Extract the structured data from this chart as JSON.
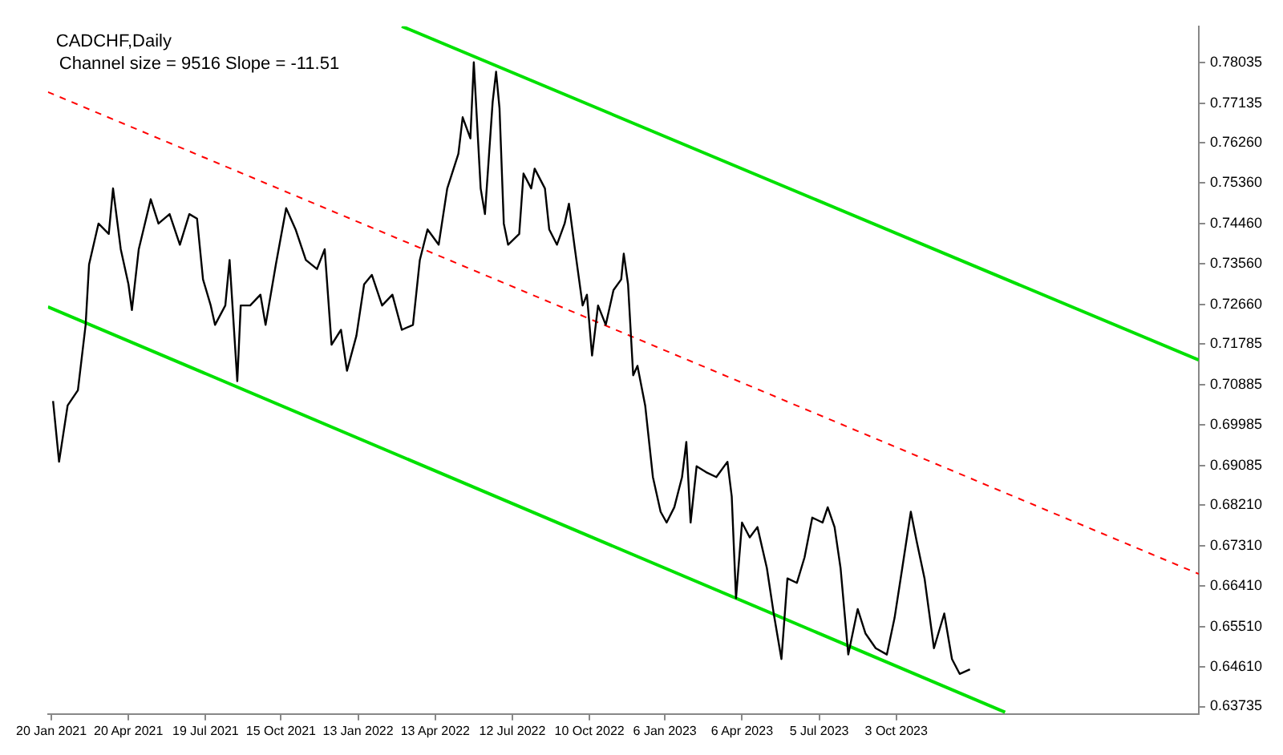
{
  "chart_data": {
    "type": "line",
    "title": "CADCHF,Daily",
    "annotations": [
      "Channel size = 9516 Slope = -11.51"
    ],
    "xlim": [
      "2021-01-16",
      "2024-09-20"
    ],
    "xticks": [
      {
        "value": "2021-01-20",
        "label": "20 Jan 2021"
      },
      {
        "value": "2021-04-20",
        "label": "20 Apr 2021"
      },
      {
        "value": "2021-07-19",
        "label": "19 Jul 2021"
      },
      {
        "value": "2021-10-15",
        "label": "15 Oct 2021"
      },
      {
        "value": "2022-01-13",
        "label": "13 Jan 2022"
      },
      {
        "value": "2022-04-13",
        "label": "13 Apr 2022"
      },
      {
        "value": "2022-07-12",
        "label": "12 Jul 2022"
      },
      {
        "value": "2022-10-10",
        "label": "10 Oct 2022"
      },
      {
        "value": "2023-01-06",
        "label": "6 Jan 2023"
      },
      {
        "value": "2023-04-06",
        "label": "6 Apr 2023"
      },
      {
        "value": "2023-07-05",
        "label": "5 Jul 2023"
      },
      {
        "value": "2023-10-03",
        "label": "3 Oct 2023"
      }
    ],
    "ylim": [
      0.6357,
      0.7884
    ],
    "yticks": [
      {
        "value": 0.63735,
        "label": "0.63735"
      },
      {
        "value": 0.6461,
        "label": "0.64610"
      },
      {
        "value": 0.6551,
        "label": "0.65510"
      },
      {
        "value": 0.6641,
        "label": "0.66410"
      },
      {
        "value": 0.6731,
        "label": "0.67310"
      },
      {
        "value": 0.6821,
        "label": "0.68210"
      },
      {
        "value": 0.69085,
        "label": "0.69085"
      },
      {
        "value": 0.69985,
        "label": "0.69985"
      },
      {
        "value": 0.70885,
        "label": "0.70885"
      },
      {
        "value": 0.71785,
        "label": "0.71785"
      },
      {
        "value": 0.7266,
        "label": "0.72660"
      },
      {
        "value": 0.7356,
        "label": "0.73560"
      },
      {
        "value": 0.7446,
        "label": "0.74460"
      },
      {
        "value": 0.7536,
        "label": "0.75360"
      },
      {
        "value": 0.7626,
        "label": "0.76260"
      },
      {
        "value": 0.77135,
        "label": "0.77135"
      },
      {
        "value": 0.78035,
        "label": "0.78035"
      }
    ],
    "grid": false,
    "legend": false,
    "marker": "none",
    "series": [
      {
        "color": "#000000",
        "line_style": "solid",
        "x": [
          "2021-01-22",
          "2021-01-29",
          "2021-02-08",
          "2021-02-20",
          "2021-03-01",
          "2021-03-05",
          "2021-03-16",
          "2021-03-28",
          "2021-04-02",
          "2021-04-11",
          "2021-04-20",
          "2021-04-24",
          "2021-05-02",
          "2021-05-16",
          "2021-05-25",
          "2021-06-07",
          "2021-06-19",
          "2021-06-30",
          "2021-07-09",
          "2021-07-16",
          "2021-07-25",
          "2021-07-30",
          "2021-08-11",
          "2021-08-16",
          "2021-08-25",
          "2021-08-29",
          "2021-09-09",
          "2021-09-21",
          "2021-09-27",
          "2021-10-09",
          "2021-10-21",
          "2021-11-01",
          "2021-11-13",
          "2021-11-26",
          "2021-12-05",
          "2021-12-13",
          "2021-12-24",
          "2021-12-31",
          "2022-01-11",
          "2022-01-20",
          "2022-01-29",
          "2022-02-10",
          "2022-02-22",
          "2022-03-05",
          "2022-03-18",
          "2022-03-26",
          "2022-04-04",
          "2022-04-17",
          "2022-04-27",
          "2022-05-10",
          "2022-05-15",
          "2022-05-24",
          "2022-05-28",
          "2022-06-05",
          "2022-06-10",
          "2022-06-19",
          "2022-06-23",
          "2022-06-27",
          "2022-07-02",
          "2022-07-07",
          "2022-07-20",
          "2022-07-25",
          "2022-08-03",
          "2022-08-07",
          "2022-08-19",
          "2022-08-24",
          "2022-09-02",
          "2022-09-11",
          "2022-09-16",
          "2022-09-23",
          "2022-10-02",
          "2022-10-07",
          "2022-10-13",
          "2022-10-20",
          "2022-10-29",
          "2022-11-07",
          "2022-11-16",
          "2022-11-19",
          "2022-11-24",
          "2022-11-30",
          "2022-12-05",
          "2022-12-14",
          "2022-12-23",
          "2023-01-01",
          "2023-01-08",
          "2023-01-17",
          "2023-01-26",
          "2023-01-31",
          "2023-02-05",
          "2023-02-12",
          "2023-02-23",
          "2023-03-07",
          "2023-03-20",
          "2023-03-25",
          "2023-03-30",
          "2023-04-06",
          "2023-04-15",
          "2023-04-24",
          "2023-05-05",
          "2023-05-13",
          "2023-05-22",
          "2023-05-29",
          "2023-06-09",
          "2023-06-18",
          "2023-06-27",
          "2023-07-09",
          "2023-07-15",
          "2023-07-23",
          "2023-07-30",
          "2023-08-08",
          "2023-08-19",
          "2023-08-28",
          "2023-09-09",
          "2023-09-22",
          "2023-10-01",
          "2023-10-10",
          "2023-10-20",
          "2023-10-27",
          "2023-11-05",
          "2023-11-16",
          "2023-11-28",
          "2023-12-07",
          "2023-12-16",
          "2023-12-28"
        ],
        "values": [
          0.7052,
          0.6917,
          0.7042,
          0.7076,
          0.7221,
          0.7355,
          0.7446,
          0.7423,
          0.7524,
          0.7389,
          0.7311,
          0.7254,
          0.7389,
          0.75,
          0.7446,
          0.7467,
          0.7399,
          0.7467,
          0.7457,
          0.7322,
          0.7264,
          0.7221,
          0.7264,
          0.7365,
          0.7096,
          0.7264,
          0.7264,
          0.7288,
          0.7221,
          0.7355,
          0.748,
          0.7433,
          0.7365,
          0.7345,
          0.7389,
          0.7177,
          0.721,
          0.7119,
          0.7197,
          0.7311,
          0.7332,
          0.7264,
          0.7288,
          0.721,
          0.7221,
          0.7365,
          0.7433,
          0.7399,
          0.7524,
          0.7601,
          0.7682,
          0.7635,
          0.7804,
          0.7524,
          0.7467,
          0.7716,
          0.7783,
          0.7702,
          0.7446,
          0.7399,
          0.7423,
          0.7557,
          0.7524,
          0.7568,
          0.7524,
          0.7433,
          0.7399,
          0.7446,
          0.749,
          0.7389,
          0.7264,
          0.7288,
          0.7153,
          0.7264,
          0.7221,
          0.7298,
          0.7322,
          0.7379,
          0.7311,
          0.7109,
          0.713,
          0.7042,
          0.6883,
          0.6806,
          0.6782,
          0.6816,
          0.6883,
          0.6961,
          0.6782,
          0.6907,
          0.6894,
          0.6883,
          0.6917,
          0.684,
          0.6614,
          0.6782,
          0.6749,
          0.6772,
          0.6681,
          0.658,
          0.6479,
          0.6658,
          0.6648,
          0.6705,
          0.6793,
          0.6782,
          0.6816,
          0.6772,
          0.6681,
          0.6489,
          0.659,
          0.6536,
          0.6503,
          0.6489,
          0.657,
          0.6681,
          0.6806,
          0.6739,
          0.6658,
          0.6503,
          0.658,
          0.6479,
          0.6446,
          0.6456
        ]
      },
      {
        "color": "#00e000",
        "line_style": "solid",
        "x": [
          "2022-03-05",
          "2024-09-20"
        ],
        "values": [
          0.7884,
          0.7143
        ]
      },
      {
        "color": "#ff0000",
        "line_style": "dashed",
        "x": [
          "2021-01-16",
          "2024-09-20"
        ],
        "values": [
          0.7738,
          0.6668
        ]
      },
      {
        "color": "#00e000",
        "line_style": "solid",
        "x": [
          "2021-01-16",
          "2024-02-07"
        ],
        "values": [
          0.7261,
          0.6361
        ]
      }
    ]
  }
}
